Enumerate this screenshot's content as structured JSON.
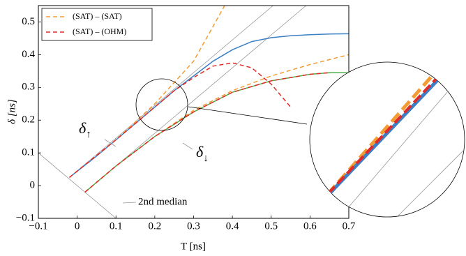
{
  "chart_data": {
    "type": "line",
    "xlabel": "T [ns]",
    "ylabel": "δ [ns]",
    "xlim": [
      -0.1,
      0.7
    ],
    "ylim": [
      -0.1,
      0.55
    ],
    "xticks": [
      {
        "value": -0.1,
        "label": "−0.1"
      },
      0,
      0.1,
      0.2,
      0.3,
      0.4,
      0.5,
      0.6,
      0.7
    ],
    "yticks": [
      {
        "value": -0.1,
        "label": "−0.1"
      },
      0,
      0.1,
      0.2,
      0.3,
      0.4,
      0.5
    ],
    "series": [
      {
        "color": "#999999",
        "x": [
          -0.02,
          0.505
        ],
        "values": [
          0.025,
          0.55
        ]
      },
      {
        "color": "#999999",
        "x": [
          0.02,
          0.59
        ],
        "values": [
          -0.02,
          0.55
        ]
      },
      {
        "color": "#999999",
        "x": [
          -0.1,
          0.1
        ],
        "values": [
          0.1,
          -0.1
        ]
      },
      {
        "color": "#3b7fc4",
        "x": [
          -0.02,
          0.05,
          0.1,
          0.15,
          0.2,
          0.25,
          0.3,
          0.35,
          0.4,
          0.45,
          0.5,
          0.55,
          0.6,
          0.65,
          0.7
        ],
        "values": [
          0.025,
          0.09,
          0.14,
          0.19,
          0.24,
          0.29,
          0.335,
          0.38,
          0.415,
          0.44,
          0.452,
          0.458,
          0.461,
          0.463,
          0.464
        ]
      },
      {
        "color": "#4daf4a",
        "x": [
          0.02,
          0.1,
          0.2,
          0.3,
          0.4,
          0.5,
          0.6,
          0.65,
          0.7
        ],
        "values": [
          -0.02,
          0.06,
          0.15,
          0.225,
          0.285,
          0.32,
          0.34,
          0.345,
          0.345
        ]
      },
      {
        "name": "(SAT) – (SAT)",
        "color": "#f39c33",
        "dash": true,
        "x": [
          -0.02,
          0.1,
          0.2,
          0.3,
          0.38
        ],
        "values": [
          0.025,
          0.14,
          0.25,
          0.38,
          0.55
        ]
      },
      {
        "color": "#f39c33",
        "dash": true,
        "x": [
          0.02,
          0.1,
          0.2,
          0.3,
          0.4,
          0.5,
          0.6,
          0.7
        ],
        "values": [
          -0.02,
          0.06,
          0.15,
          0.23,
          0.29,
          0.335,
          0.37,
          0.4
        ]
      },
      {
        "name": "(SAT) – (OHM)",
        "color": "#e02a2a",
        "dash": true,
        "x": [
          -0.02,
          0.1,
          0.2,
          0.25,
          0.3,
          0.35,
          0.4,
          0.45,
          0.5,
          0.55
        ],
        "values": [
          0.025,
          0.14,
          0.24,
          0.29,
          0.33,
          0.365,
          0.375,
          0.36,
          0.31,
          0.24
        ]
      },
      {
        "color": "#e02a2a",
        "dash": true,
        "x": [
          0.02,
          0.1,
          0.2,
          0.3,
          0.4,
          0.5,
          0.6,
          0.65
        ],
        "values": [
          -0.02,
          0.06,
          0.15,
          0.225,
          0.285,
          0.32,
          0.34,
          0.345
        ]
      }
    ],
    "annotations": [
      {
        "base": "δ",
        "subscript": "↑",
        "color": "#3b7fc4"
      },
      {
        "base": "δ",
        "subscript": "↓",
        "color": "#4daf4a"
      },
      {
        "text": "2nd median"
      }
    ]
  }
}
